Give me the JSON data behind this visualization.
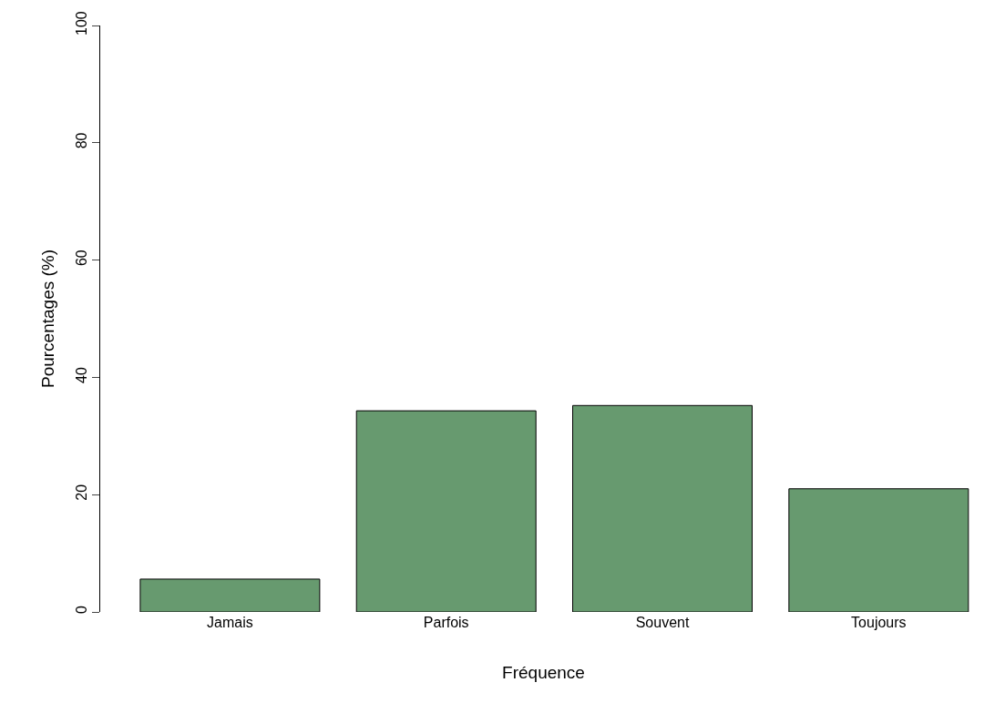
{
  "chart_data": {
    "type": "bar",
    "xlabel": "Fréquence",
    "ylabel": "Pourcentages (%)",
    "categories": [
      "Jamais",
      "Parfois",
      "Souvent",
      "Toujours"
    ],
    "values": [
      5.6,
      34.3,
      35.2,
      21.0
    ],
    "color": "#679a6f",
    "ylim": [
      0,
      100
    ],
    "yticks": [
      0,
      20,
      40,
      60,
      80,
      100
    ]
  }
}
